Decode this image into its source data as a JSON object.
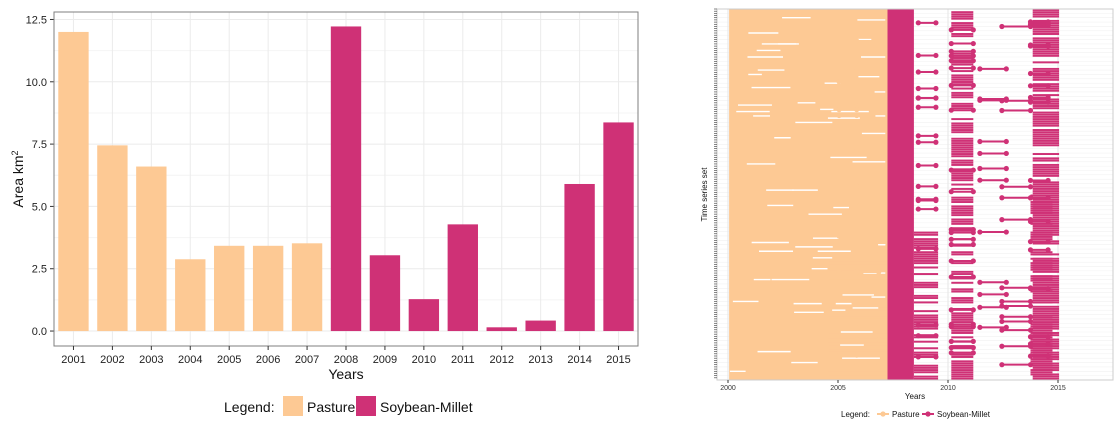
{
  "chart_data": [
    {
      "type": "bar",
      "categories": [
        "2001",
        "2002",
        "2003",
        "2004",
        "2005",
        "2006",
        "2007",
        "2008",
        "2009",
        "2010",
        "2011",
        "2012",
        "2013",
        "2014",
        "2015"
      ],
      "values": [
        12.0,
        7.45,
        6.6,
        2.88,
        3.42,
        3.42,
        3.52,
        12.22,
        3.04,
        1.28,
        4.28,
        0.15,
        0.42,
        5.9,
        8.37
      ],
      "classes": [
        "Pasture",
        "Pasture",
        "Pasture",
        "Pasture",
        "Pasture",
        "Pasture",
        "Pasture",
        "Soybean-Millet",
        "Soybean-Millet",
        "Soybean-Millet",
        "Soybean-Millet",
        "Soybean-Millet",
        "Soybean-Millet",
        "Soybean-Millet",
        "Soybean-Millet"
      ],
      "xlabel": "Years",
      "ylabel": "Area km",
      "ylabel_superscript": "2",
      "ylim": [
        -0.6,
        12.8
      ],
      "yticks": [
        "0.0",
        "2.5",
        "5.0",
        "7.5",
        "10.0",
        "12.5"
      ],
      "grid": true,
      "legend": {
        "title": "Legend:",
        "position": "bottom",
        "items": [
          "Pasture",
          "Soybean-Millet"
        ]
      },
      "colors": {
        "Pasture": "#fdc994",
        "Soybean-Millet": "#cf3176",
        "grid": "#ebebeb",
        "axis": "#333333"
      }
    },
    {
      "type": "timeline",
      "xlabel": "Years",
      "ylabel": "Time series set",
      "xlim": [
        1999.5,
        2017.5
      ],
      "xticks": [
        "2000",
        "2005",
        "2010",
        "2015"
      ],
      "band_shift_years": -0.45,
      "legend": {
        "title": "Legend:",
        "position": "bottom",
        "items": [
          "Pasture",
          "Soybean-Millet"
        ]
      },
      "colors": {
        "Pasture": "#fdc994",
        "Soybean-Millet": "#cf3176"
      },
      "dense_spans": [
        {
          "class": "Pasture",
          "from": 2000.5,
          "to": 2007.7
        },
        {
          "class": "Soybean-Millet",
          "from": 2007.7,
          "to": 2008.9
        }
      ],
      "partial_spans": [
        {
          "class": "Pasture",
          "from": 2005.0,
          "to": 2007.7,
          "share_from": 0.65
        },
        {
          "class": "Soybean-Millet",
          "from": 2010.6,
          "to": 2011.6,
          "share": 0.6
        },
        {
          "class": "Soybean-Millet",
          "from": 2014.3,
          "to": 2015.5,
          "share": 0.75
        },
        {
          "class": "Soybean-Millet",
          "from": 2008.9,
          "to": 2010.0,
          "share_from": 0.6
        },
        {
          "class": "Soybean-Millet",
          "from": 2014.2,
          "to": 2015.2,
          "share_from": 0.5
        }
      ],
      "segments": [
        {
          "class": "Pasture",
          "from": 2005.5,
          "to": 2006.3,
          "count": 14
        },
        {
          "class": "Pasture",
          "from": 2006.3,
          "to": 2007.3,
          "count": 14
        },
        {
          "class": "Soybean-Millet",
          "from": 2009.1,
          "to": 2009.9,
          "count": 18
        },
        {
          "class": "Soybean-Millet",
          "from": 2010.6,
          "to": 2011.6,
          "count": 22
        },
        {
          "class": "Soybean-Millet",
          "from": 2011.9,
          "to": 2013.1,
          "count": 12
        },
        {
          "class": "Soybean-Millet",
          "from": 2012.9,
          "to": 2014.2,
          "count": 14
        },
        {
          "class": "Soybean-Millet",
          "from": 2014.2,
          "to": 2015.0,
          "count": 18
        }
      ]
    }
  ]
}
